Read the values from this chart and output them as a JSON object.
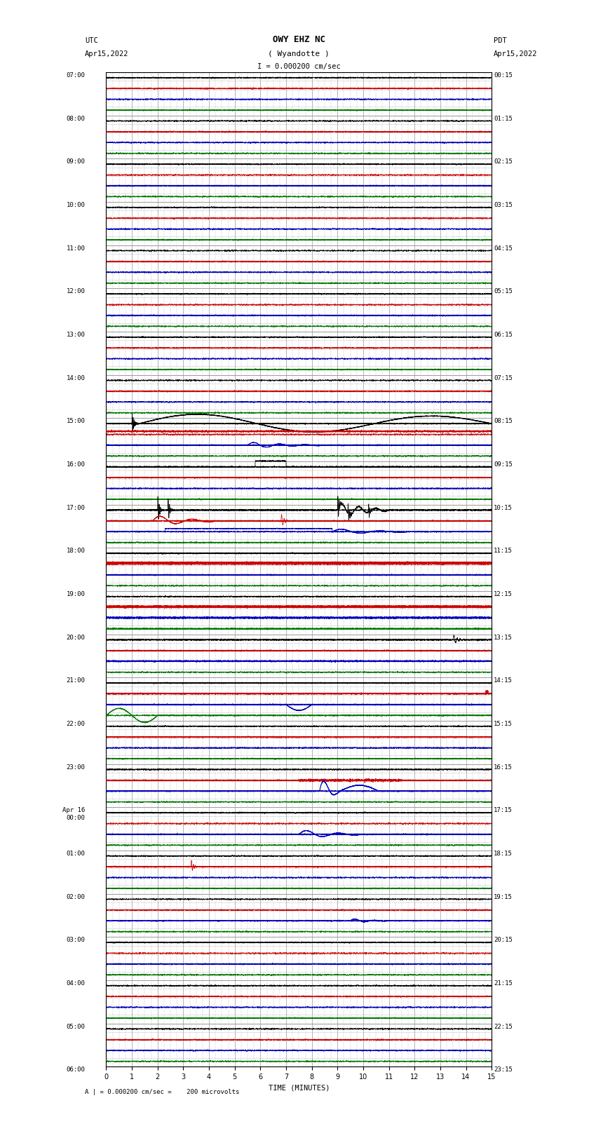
{
  "title_line1": "OWY EHZ NC",
  "title_line2": "( Wyandotte )",
  "scale_label": "I = 0.000200 cm/sec",
  "utc_label": "UTC",
  "utc_date": "Apr15,2022",
  "pdt_label": "PDT",
  "pdt_date": "Apr15,2022",
  "bottom_label": "A | = 0.000200 cm/sec =    200 microvolts",
  "xlabel": "TIME (MINUTES)",
  "xlim": [
    0,
    15
  ],
  "xticks": [
    0,
    1,
    2,
    3,
    4,
    5,
    6,
    7,
    8,
    9,
    10,
    11,
    12,
    13,
    14,
    15
  ],
  "num_rows": 23,
  "bg_color": "#ffffff",
  "grid_color": "#999999",
  "minor_grid_color": "#cccccc",
  "colors": {
    "black": "#000000",
    "red": "#cc0000",
    "blue": "#0000bb",
    "green": "#007700"
  },
  "left_labels": [
    "07:00",
    "08:00",
    "09:00",
    "10:00",
    "11:00",
    "12:00",
    "13:00",
    "14:00",
    "15:00",
    "16:00",
    "17:00",
    "18:00",
    "19:00",
    "20:00",
    "21:00",
    "22:00",
    "23:00",
    "Apr 16\n00:00",
    "01:00",
    "02:00",
    "03:00",
    "04:00",
    "05:00",
    "06:00"
  ],
  "right_labels": [
    "00:15",
    "01:15",
    "02:15",
    "03:15",
    "04:15",
    "05:15",
    "06:15",
    "07:15",
    "08:15",
    "09:15",
    "10:15",
    "11:15",
    "12:15",
    "13:15",
    "14:15",
    "15:15",
    "16:15",
    "17:15",
    "18:15",
    "19:15",
    "20:15",
    "21:15",
    "22:15",
    "23:15"
  ]
}
